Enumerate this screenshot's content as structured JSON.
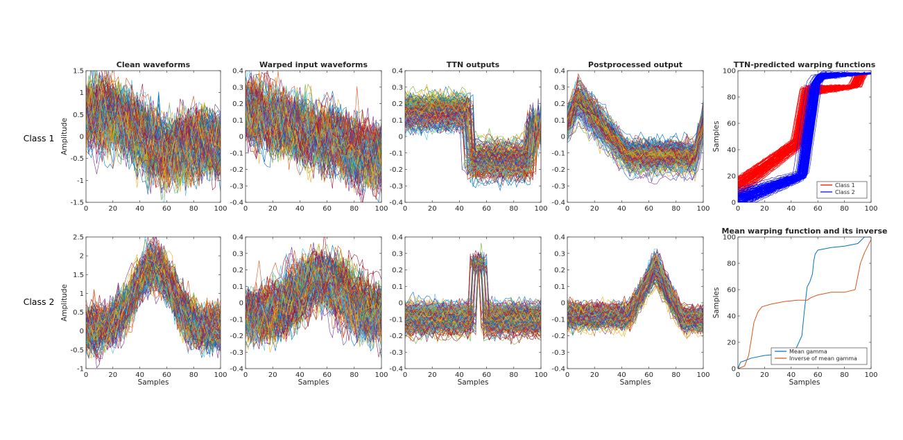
{
  "figure": {
    "row_labels": [
      "Class 1",
      "Class 2"
    ]
  },
  "chart_data": [
    {
      "id": "c1-clean",
      "type": "line",
      "title": "Clean waveforms",
      "xlabel": "",
      "ylabel": "Amplitude",
      "xlim": [
        0,
        100
      ],
      "ylim": [
        -1.5,
        1.5
      ],
      "xticks": [
        0,
        20,
        40,
        60,
        80,
        100
      ],
      "yticks": [
        -1.5,
        -1,
        -0.5,
        0,
        0.5,
        1,
        1.5
      ],
      "yticklabels": [
        "-1.5",
        "-1",
        "-0.5",
        "0",
        "0.5",
        "1",
        "1.5"
      ],
      "series_count": 200,
      "description": "many noisy waveforms, decaying from ~0.5 at start to ~-0.5 at end with noise amplitude ~0.5"
    },
    {
      "id": "c1-warped",
      "type": "line",
      "title": "Warped input waveforms",
      "xlabel": "",
      "ylabel": "",
      "xlim": [
        0,
        100
      ],
      "ylim": [
        -0.4,
        0.4
      ],
      "xticks": [
        0,
        20,
        40,
        60,
        80,
        100
      ],
      "yticks": [
        -0.4,
        -0.3,
        -0.2,
        -0.1,
        0,
        0.1,
        0.2,
        0.3,
        0.4
      ],
      "yticklabels": [
        "-0.4",
        "-0.3",
        "-0.2",
        "-0.1",
        "0",
        "0.1",
        "0.2",
        "0.3",
        "0.4"
      ],
      "series_count": 200,
      "description": "noisy waveforms ~0.15 at start decaying to ~-0.15 at end"
    },
    {
      "id": "c1-ttn",
      "type": "line",
      "title": "TTN outputs",
      "xlabel": "",
      "ylabel": "",
      "xlim": [
        0,
        100
      ],
      "ylim": [
        -0.4,
        0.4
      ],
      "xticks": [
        0,
        20,
        40,
        60,
        80,
        100
      ],
      "yticks": [
        -0.4,
        -0.3,
        -0.2,
        -0.1,
        0,
        0.1,
        0.2,
        0.3,
        0.4
      ],
      "yticklabels": [
        "-0.4",
        "-0.3",
        "-0.2",
        "-0.1",
        "0",
        "0.1",
        "0.2",
        "0.3",
        "0.4"
      ],
      "series_count": 200,
      "description": "plateau ~0.15 for samples 0-47, drop to ~-0.15 for 50-92, rise to ~0.05 after 92"
    },
    {
      "id": "c1-post",
      "type": "line",
      "title": "Postprocessed output",
      "xlabel": "",
      "ylabel": "",
      "xlim": [
        0,
        100
      ],
      "ylim": [
        -0.4,
        0.4
      ],
      "xticks": [
        0,
        20,
        40,
        60,
        80,
        100
      ],
      "yticks": [
        -0.4,
        -0.3,
        -0.2,
        -0.1,
        0,
        0.1,
        0.2,
        0.3,
        0.4
      ],
      "yticklabels": [
        "-0.4",
        "-0.3",
        "-0.2",
        "-0.1",
        "0",
        "0.1",
        "0.2",
        "0.3",
        "0.4"
      ],
      "series_count": 200,
      "description": "peak ~0.22 at sample 8, decays to ~-0.12 by sample 45, flat until ~95, then rises"
    },
    {
      "id": "c1-warpfn",
      "type": "line",
      "title": "TTN-predicted warping functions",
      "xlabel": "",
      "ylabel": "Samples",
      "xlim": [
        0,
        100
      ],
      "ylim": [
        0,
        100
      ],
      "xticks": [
        0,
        20,
        40,
        60,
        80,
        100
      ],
      "yticks": [
        0,
        20,
        40,
        60,
        80,
        100
      ],
      "yticklabels": [
        "0",
        "20",
        "40",
        "60",
        "80",
        "100"
      ],
      "series": [
        {
          "name": "Class 1",
          "color": "#ff0000",
          "knots_x": [
            0,
            45,
            52,
            88,
            92,
            100
          ],
          "knots_y": [
            12,
            45,
            85,
            88,
            97,
            98
          ]
        },
        {
          "name": "Class 2",
          "color": "#0000ff",
          "knots_x": [
            0,
            48,
            58,
            62,
            100
          ],
          "knots_y": [
            2,
            20,
            90,
            96,
            98
          ]
        }
      ],
      "legend": {
        "entries": [
          "Class 1",
          "Class 2"
        ],
        "location": "bottom-right"
      }
    },
    {
      "id": "c2-clean",
      "type": "line",
      "title": "",
      "xlabel": "Samples",
      "ylabel": "Amplitude",
      "xlim": [
        0,
        100
      ],
      "ylim": [
        -1,
        2.5
      ],
      "xticks": [
        0,
        20,
        40,
        60,
        80,
        100
      ],
      "yticks": [
        -1,
        -0.5,
        0,
        0.5,
        1,
        1.5,
        2,
        2.5
      ],
      "yticklabels": [
        "-1",
        "-0.5",
        "0",
        "0.5",
        "1",
        "1.5",
        "2",
        "2.5"
      ],
      "series_count": 200,
      "description": "bell-shaped waveforms peaking ~1.7 at sample 50, ~0 at edges"
    },
    {
      "id": "c2-warped",
      "type": "line",
      "title": "",
      "xlabel": "Samples",
      "ylabel": "",
      "xlim": [
        0,
        100
      ],
      "ylim": [
        -0.4,
        0.4
      ],
      "xticks": [
        0,
        20,
        40,
        60,
        80,
        100
      ],
      "yticks": [
        -0.4,
        -0.3,
        -0.2,
        -0.1,
        0,
        0.1,
        0.2,
        0.3,
        0.4
      ],
      "yticklabels": [
        "-0.4",
        "-0.3",
        "-0.2",
        "-0.1",
        "0",
        "0.1",
        "0.2",
        "0.3",
        "0.4"
      ],
      "series_count": 200,
      "description": "broad hump peaking ~0.15 around samples 40-70"
    },
    {
      "id": "c2-ttn",
      "type": "line",
      "title": "",
      "xlabel": "Samples",
      "ylabel": "",
      "xlim": [
        0,
        100
      ],
      "ylim": [
        -0.4,
        0.4
      ],
      "xticks": [
        0,
        20,
        40,
        60,
        80,
        100
      ],
      "yticks": [
        -0.4,
        -0.3,
        -0.2,
        -0.1,
        0,
        0.1,
        0.2,
        0.3,
        0.4
      ],
      "yticklabels": [
        "-0.4",
        "-0.3",
        "-0.2",
        "-0.1",
        "0",
        "0.1",
        "0.2",
        "0.3",
        "0.4"
      ],
      "series_count": 200,
      "description": "flat ~-0.1 with sharp spike ~0.25 between samples 50 and 58"
    },
    {
      "id": "c2-post",
      "type": "line",
      "title": "",
      "xlabel": "Samples",
      "ylabel": "",
      "xlim": [
        0,
        100
      ],
      "ylim": [
        -0.4,
        0.4
      ],
      "xticks": [
        0,
        20,
        40,
        60,
        80,
        100
      ],
      "yticks": [
        -0.4,
        -0.3,
        -0.2,
        -0.1,
        0,
        0.1,
        0.2,
        0.3,
        0.4
      ],
      "yticklabels": [
        "-0.4",
        "-0.3",
        "-0.2",
        "-0.1",
        "0",
        "0.1",
        "0.2",
        "0.3",
        "0.4"
      ],
      "series_count": 200,
      "description": "flat ~-0.08 until ~45, triangular peak ~0.22 at 65, back to ~-0.1 at 85"
    },
    {
      "id": "c2-mean",
      "type": "line",
      "title": "Mean warping function and its inverse",
      "xlabel": "Samples",
      "ylabel": "Samples",
      "xlim": [
        0,
        100
      ],
      "ylim": [
        0,
        100
      ],
      "xticks": [
        0,
        20,
        40,
        60,
        80,
        100
      ],
      "yticks": [
        0,
        20,
        40,
        60,
        80,
        100
      ],
      "yticklabels": [
        "0",
        "20",
        "40",
        "60",
        "80",
        "100"
      ],
      "series": [
        {
          "name": "Mean gamma",
          "color": "#0072bd",
          "x": [
            0,
            2,
            5,
            10,
            20,
            30,
            40,
            44,
            48,
            50,
            52,
            54,
            56,
            57,
            58,
            60,
            65,
            70,
            80,
            90,
            95,
            100
          ],
          "y": [
            0,
            5,
            6,
            8,
            10,
            11,
            13,
            16,
            25,
            45,
            62,
            66,
            72,
            82,
            87,
            90,
            91,
            92,
            93,
            95,
            100,
            100
          ]
        },
        {
          "name": "Inverse of mean gamma",
          "color": "#d95319",
          "x": [
            0,
            5,
            8,
            10,
            12,
            15,
            18,
            25,
            35,
            45,
            52,
            55,
            60,
            65,
            70,
            75,
            80,
            88,
            92,
            95,
            100
          ],
          "y": [
            0,
            2,
            10,
            22,
            35,
            43,
            47,
            49,
            51,
            52,
            52,
            54,
            56,
            57,
            58,
            58,
            58,
            60,
            80,
            88,
            98
          ]
        }
      ],
      "legend": {
        "entries": [
          "Mean gamma",
          "Inverse of mean gamma"
        ],
        "location": "bottom-right"
      }
    }
  ]
}
